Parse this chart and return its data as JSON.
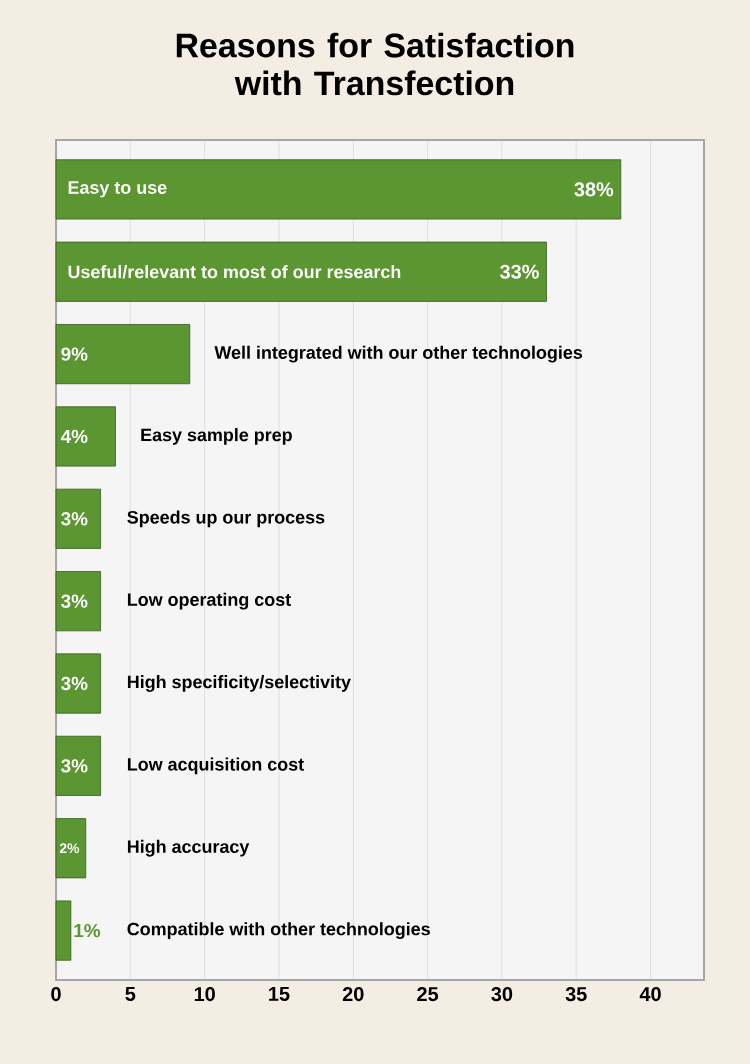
{
  "chart_data": {
    "type": "bar",
    "orientation": "horizontal",
    "title": "Reasons for Satisfaction with Transfection",
    "categories": [
      "Easy to use",
      "Useful/relevant to most of our research",
      "Well integrated with our other technologies",
      "Easy sample prep",
      "Speeds up our process",
      "Low operating cost",
      "High specificity/selectivity",
      "Low acquisition cost",
      "High accuracy",
      "Compatible with other technologies"
    ],
    "values": [
      38,
      33,
      9,
      4,
      3,
      3,
      3,
      3,
      2,
      1
    ],
    "value_labels": [
      "38%",
      "33%",
      "9%",
      "4%",
      "3%",
      "3%",
      "3%",
      "3%",
      "2%",
      "1%"
    ],
    "color": "#5b9632",
    "xlim": [
      0,
      43.6
    ],
    "xticks": [
      0,
      5,
      10,
      15,
      20,
      25,
      30,
      35,
      40
    ],
    "grid": "x"
  }
}
